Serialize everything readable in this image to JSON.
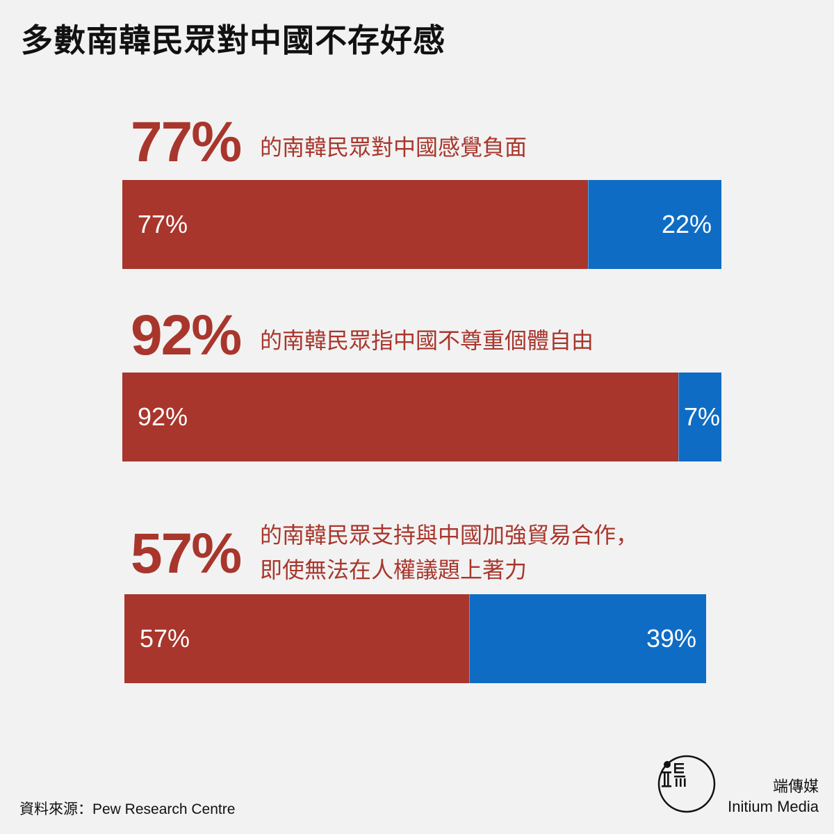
{
  "title": "多數南韓民眾對中國不存好感",
  "chart_data": {
    "type": "bar",
    "orientation": "horizontal-stacked",
    "colors": {
      "red": "#a8362c",
      "blue": "#0f6cc4"
    },
    "items": [
      {
        "headline_pct": "77%",
        "caption_lines": [
          "的南韓民眾對中國感覺負面"
        ],
        "values": [
          77,
          22
        ],
        "labels": [
          "77%",
          "22%"
        ]
      },
      {
        "headline_pct": "92%",
        "caption_lines": [
          "的南韓民眾指中國不尊重個體自由"
        ],
        "values": [
          92,
          7
        ],
        "labels": [
          "92%",
          "7%"
        ]
      },
      {
        "headline_pct": "57%",
        "caption_lines": [
          "的南韓民眾支持與中國加強貿易合作，",
          "即使無法在人權議題上著力"
        ],
        "values": [
          57,
          39
        ],
        "labels": [
          "57%",
          "39%"
        ]
      }
    ]
  },
  "source": "資料來源：Pew Research Centre",
  "brand": {
    "zh": "端傳媒",
    "en": "Initium Media"
  }
}
